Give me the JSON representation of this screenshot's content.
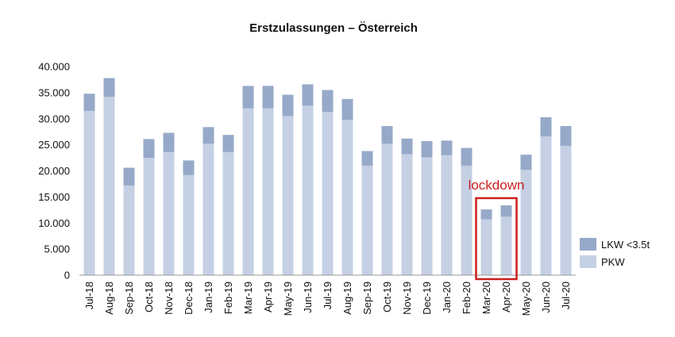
{
  "chart_data": {
    "type": "bar",
    "stacked": true,
    "title": "Erstzulassungen – Österreich",
    "xlabel": "",
    "ylabel": "",
    "ylim": [
      0,
      40000
    ],
    "yticks": [
      "0",
      "5.000",
      "10.000",
      "15.000",
      "20.000",
      "25.000",
      "30.000",
      "35.000",
      "40.000"
    ],
    "grid": false,
    "legend_position": "right",
    "categories": [
      "Jul-18",
      "Aug-18",
      "Sep-18",
      "Oct-18",
      "Nov-18",
      "Dec-18",
      "Jan-19",
      "Feb-19",
      "Mar-19",
      "Apr-19",
      "May-19",
      "Jun-19",
      "Jul-19",
      "Aug-19",
      "Sep-19",
      "Oct-19",
      "Nov-19",
      "Dec-19",
      "Jan-20",
      "Feb-20",
      "Mar-20",
      "Apr-20",
      "May-20",
      "Jun-20",
      "Jul-20"
    ],
    "series": [
      {
        "name": "PKW",
        "color": "#c5d0e4",
        "values": [
          31500,
          34200,
          17200,
          22500,
          23600,
          19200,
          25200,
          23600,
          32000,
          32000,
          30500,
          32500,
          31300,
          29800,
          21000,
          25200,
          23200,
          22600,
          23000,
          21000,
          10700,
          11200,
          20200,
          26600,
          24800
        ]
      },
      {
        "name": "LKW <3.5t",
        "color": "#96a9c9",
        "values": [
          3300,
          3600,
          3400,
          3600,
          3700,
          2800,
          3200,
          3300,
          4300,
          4300,
          4100,
          4100,
          4200,
          4000,
          2800,
          3400,
          3000,
          3100,
          2800,
          3400,
          1900,
          2200,
          2900,
          3700,
          3800
        ]
      }
    ],
    "annotation": {
      "text": "lockdown",
      "color": "#cc1f1f",
      "categories": [
        "Mar-20",
        "Apr-20"
      ]
    }
  }
}
